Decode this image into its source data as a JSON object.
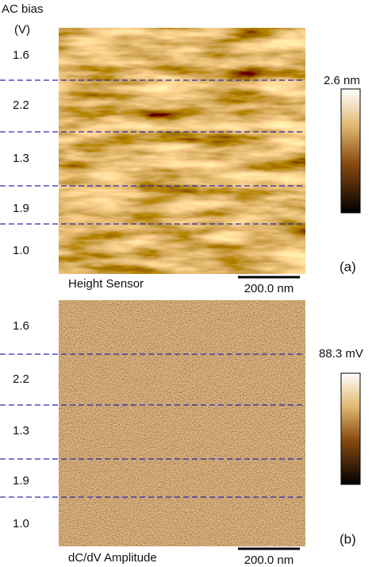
{
  "axis_title": {
    "line1": "AC bias",
    "line2": "(V)"
  },
  "panels": [
    {
      "bias_labels": [
        "1.6",
        "2.2",
        "1.3",
        "1.9",
        "1.0"
      ],
      "colorbar_label": "2.6 nm",
      "panel_label": "(a)",
      "channel": "Height Sensor",
      "scale_bar": "200.0 nm"
    },
    {
      "bias_labels": [
        "1.6",
        "2.2",
        "1.3",
        "1.9",
        "1.0"
      ],
      "colorbar_label": "88.3 mV",
      "panel_label": "(b)",
      "channel": "dC/dV Amplitude",
      "scale_bar": "200.0 nm"
    }
  ]
}
